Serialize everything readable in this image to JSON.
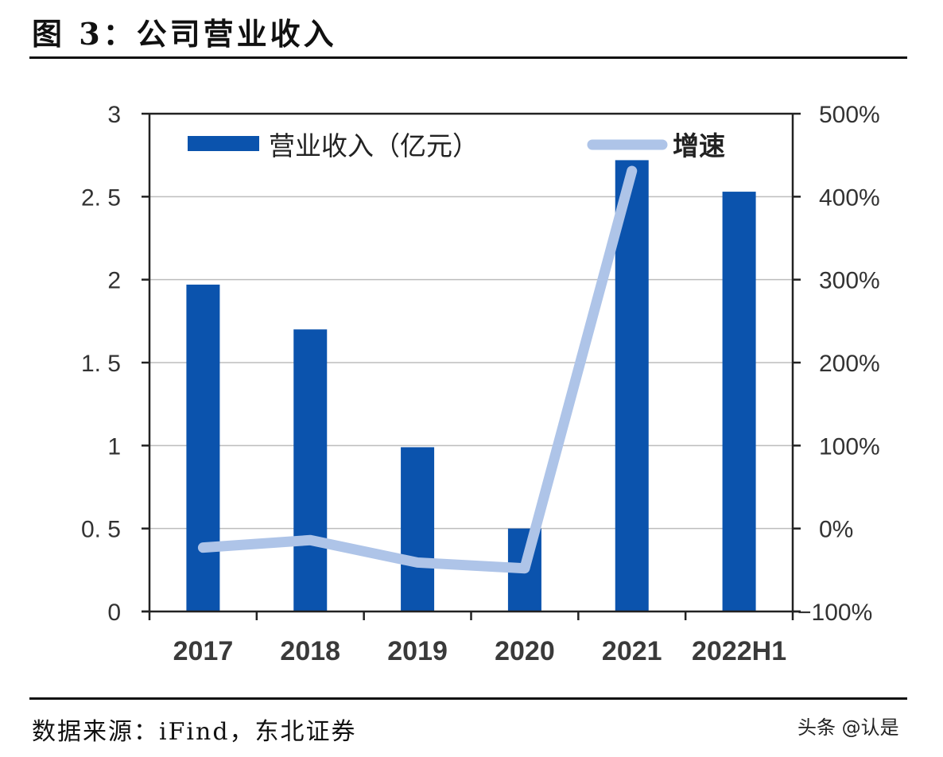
{
  "figure": {
    "title": "图 3：公司营业收入",
    "source": "数据来源：iFind，东北证券",
    "watermark": "头条 @认是"
  },
  "colors": {
    "bar": "#0b53ad",
    "line": "#aec4e8",
    "axis": "#222222",
    "grid": "#bdbdbd"
  },
  "chart_data": {
    "type": "bar+line",
    "title": "公司营业收入",
    "categories": [
      "2017",
      "2018",
      "2019",
      "2020",
      "2021",
      "2022H1"
    ],
    "series": [
      {
        "name": "营业收入（亿元）",
        "type": "bar",
        "axis": "left",
        "values": [
          1.97,
          1.7,
          0.99,
          0.5,
          2.72,
          2.53
        ]
      },
      {
        "name": "增速",
        "type": "line",
        "axis": "right",
        "unit": "%",
        "values": [
          -23,
          -14,
          -41,
          -48,
          431,
          null
        ]
      }
    ],
    "left_axis": {
      "min": 0,
      "max": 3,
      "ticks": [
        "0",
        "0.5",
        "1",
        "1.5",
        "2",
        "2.5",
        "3"
      ]
    },
    "right_axis": {
      "min": -100,
      "max": 500,
      "ticks": [
        "-100%",
        "0%",
        "100%",
        "200%",
        "300%",
        "400%",
        "500%"
      ]
    },
    "legend": {
      "position": "top-inside",
      "entries": [
        "营业收入（亿元）",
        "增速"
      ]
    },
    "grid": true
  }
}
